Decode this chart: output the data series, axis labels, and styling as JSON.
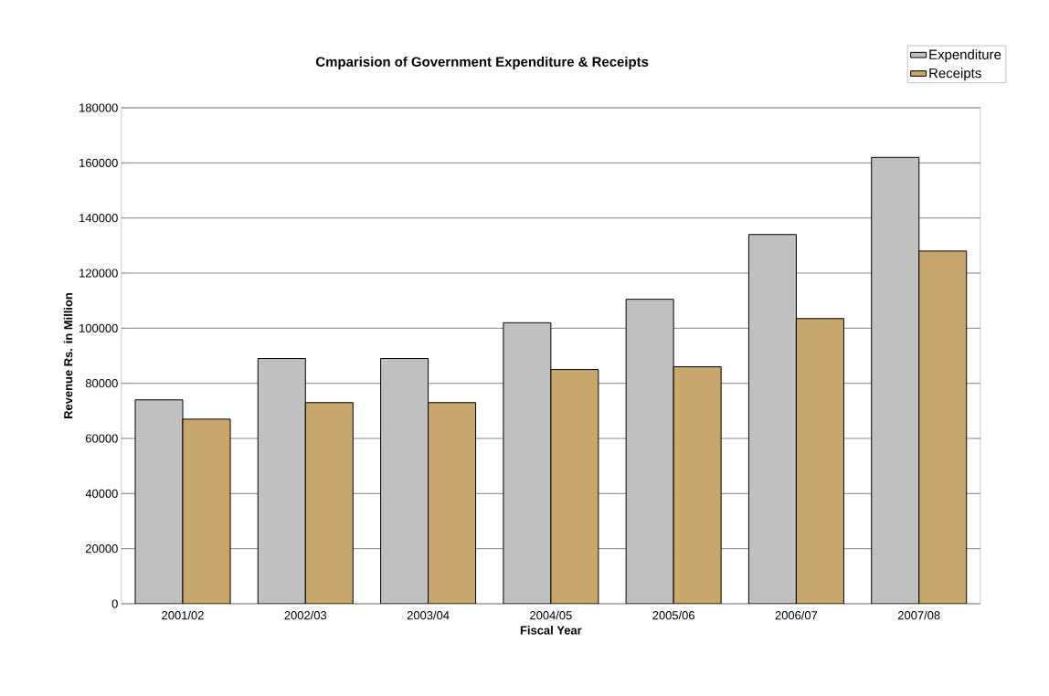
{
  "chart_data": {
    "type": "bar",
    "title": "Cmparision of Government Expenditure & Receipts",
    "xlabel": "Fiscal Year",
    "ylabel": "Revenue Rs. in Million",
    "categories": [
      "2001/02",
      "2002/03",
      "2003/04",
      "2004/05",
      "2005/06",
      "2006/07",
      "2007/08"
    ],
    "series": [
      {
        "name": "Expenditure",
        "color": "#c0c0c0",
        "values": [
          74000,
          89000,
          89000,
          102000,
          110500,
          134000,
          162000
        ]
      },
      {
        "name": "Receipts",
        "color": "#c9a66b",
        "values": [
          67000,
          73000,
          73000,
          85000,
          86000,
          103500,
          128000
        ]
      }
    ],
    "ylim": [
      0,
      180000
    ],
    "yticks": [
      0,
      20000,
      40000,
      60000,
      80000,
      100000,
      120000,
      140000,
      160000,
      180000
    ],
    "grid": "y",
    "legend": "top right"
  }
}
